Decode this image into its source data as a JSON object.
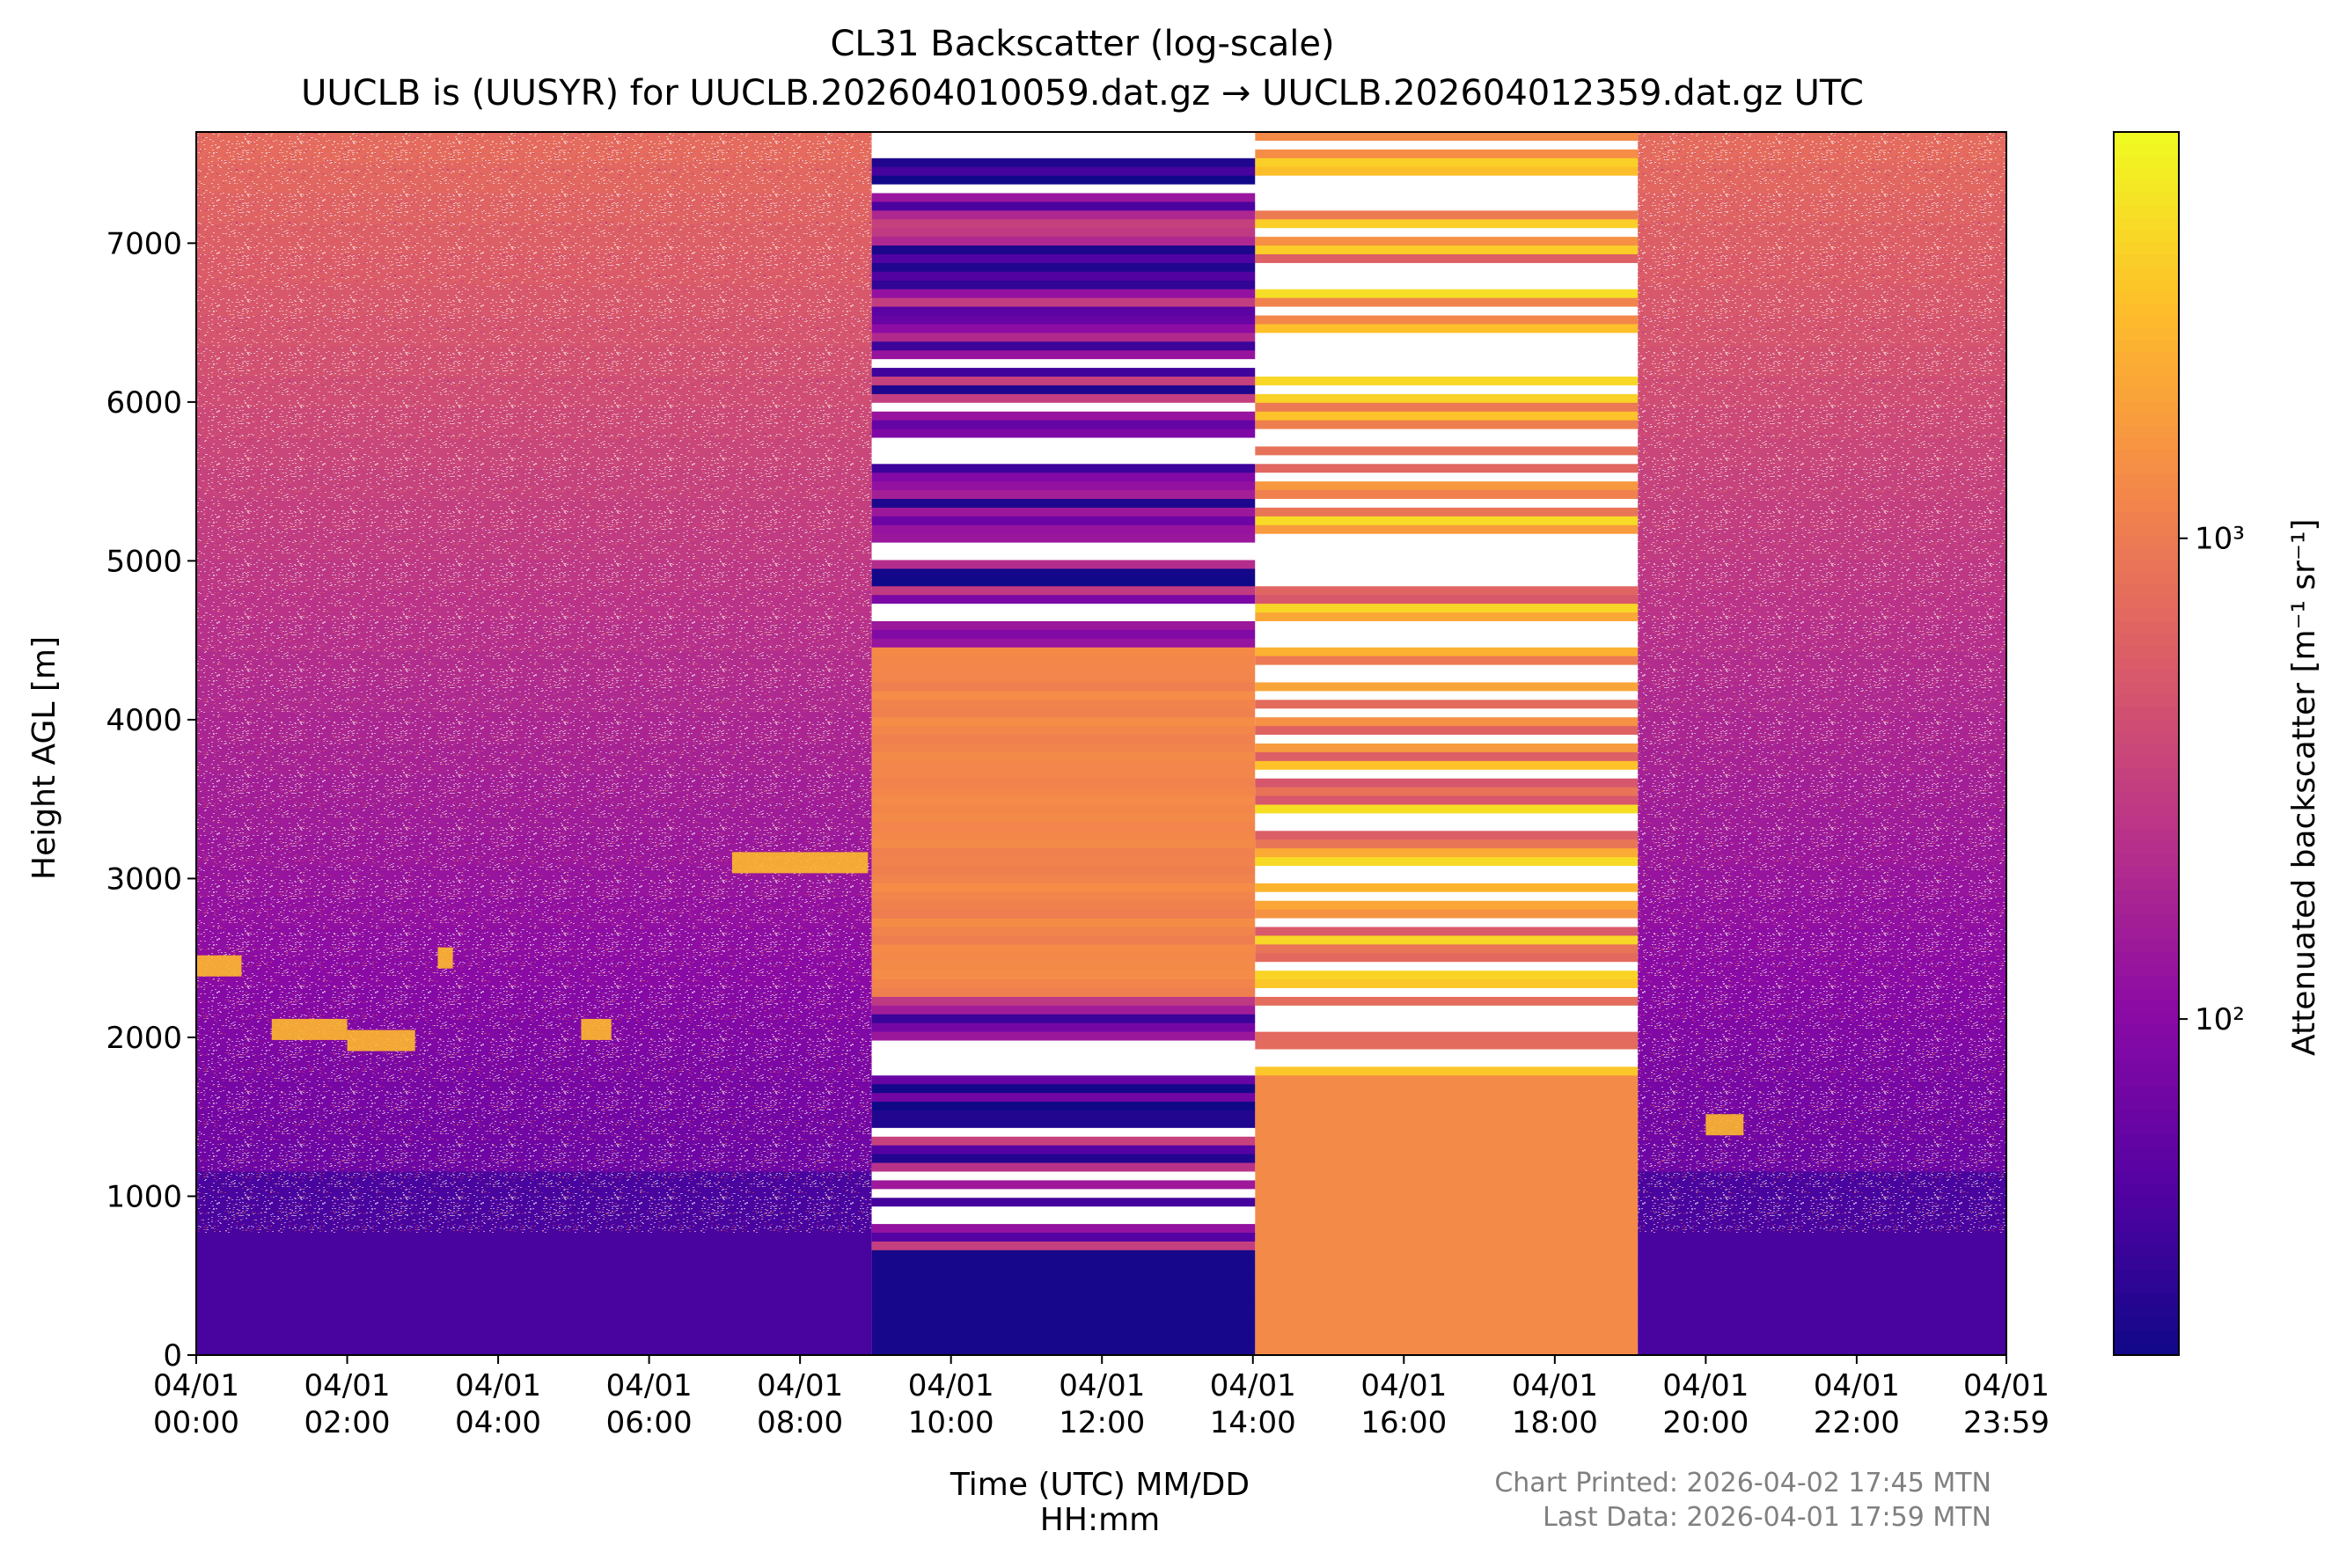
{
  "chart_data": {
    "type": "heatmap",
    "title": "CL31 Backscatter (log-scale)",
    "subtitle": "UUCLB is (UUSYR) for UUCLB.202604010059.dat.gz → UUCLB.202604012359.dat.gz UTC",
    "xlabel_line1": "Time (UTC) MM/DD",
    "xlabel_line2": "HH:mm",
    "ylabel": "Height AGL [m]",
    "colorbar_label": "Attenuated backscatter [m⁻¹ sr⁻¹]",
    "colormap": "plasma",
    "colorbar_scale": "log",
    "colorbar_range": [
      20,
      7000
    ],
    "colorbar_ticks": [
      {
        "value": 100,
        "label": "10²"
      },
      {
        "value": 1000,
        "label": "10³"
      }
    ],
    "xlim_hours": [
      0,
      23.983
    ],
    "ylim": [
      0,
      7700
    ],
    "yticks": [
      0,
      1000,
      2000,
      3000,
      4000,
      5000,
      6000,
      7000
    ],
    "xticks": [
      {
        "hour": 0,
        "date": "04/01",
        "time": "00:00"
      },
      {
        "hour": 2,
        "date": "04/01",
        "time": "02:00"
      },
      {
        "hour": 4,
        "date": "04/01",
        "time": "04:00"
      },
      {
        "hour": 6,
        "date": "04/01",
        "time": "06:00"
      },
      {
        "hour": 8,
        "date": "04/01",
        "time": "08:00"
      },
      {
        "hour": 10,
        "date": "04/01",
        "time": "10:00"
      },
      {
        "hour": 12,
        "date": "04/01",
        "time": "12:00"
      },
      {
        "hour": 14,
        "date": "04/01",
        "time": "14:00"
      },
      {
        "hour": 16,
        "date": "04/01",
        "time": "16:00"
      },
      {
        "hour": 18,
        "date": "04/01",
        "time": "18:00"
      },
      {
        "hour": 20,
        "date": "04/01",
        "time": "20:00"
      },
      {
        "hour": 22,
        "date": "04/01",
        "time": "22:00"
      },
      {
        "hour": 23.983,
        "date": "04/01",
        "time": "23:59"
      }
    ],
    "segments": [
      {
        "start_hour": 0,
        "end_hour": 8.95,
        "kind": "noisy",
        "description": "speckled backscatter with cloud layers"
      },
      {
        "start_hour": 8.95,
        "end_hour": 14.03,
        "kind": "striped",
        "palette": "dark"
      },
      {
        "start_hour": 14.03,
        "end_hour": 19.1,
        "kind": "striped",
        "palette": "bright"
      },
      {
        "start_hour": 19.1,
        "end_hour": 23.983,
        "kind": "noisy",
        "description": "speckled backscatter with scattered features"
      }
    ],
    "cloud_layers": [
      {
        "start_hour": 0.0,
        "end_hour": 0.6,
        "height_m": 2450
      },
      {
        "start_hour": 1.0,
        "end_hour": 2.0,
        "height_m": 2050
      },
      {
        "start_hour": 2.0,
        "end_hour": 2.9,
        "height_m": 1980
      },
      {
        "start_hour": 3.2,
        "end_hour": 3.4,
        "height_m": 2500
      },
      {
        "start_hour": 5.1,
        "end_hour": 5.5,
        "height_m": 2050
      },
      {
        "start_hour": 7.1,
        "end_hour": 8.9,
        "height_m": 3100
      },
      {
        "start_hour": 20.0,
        "end_hour": 20.5,
        "height_m": 1450
      }
    ]
  },
  "footer": {
    "printed": "Chart Printed: 2026-04-02 17:45 MTN",
    "last_data": "Last Data: 2026-04-01 17:59 MTN"
  }
}
